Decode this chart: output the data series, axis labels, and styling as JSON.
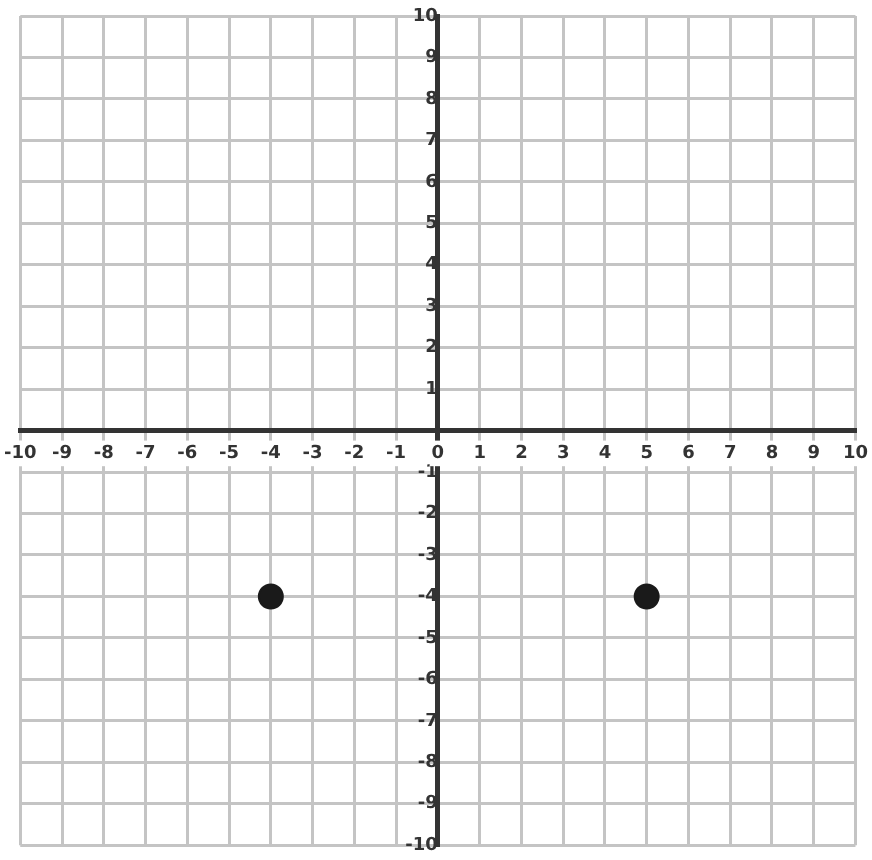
{
  "chart_data": {
    "type": "scatter",
    "series": [
      {
        "color": "#1a1a1a",
        "x": [
          -4,
          5
        ],
        "values": [
          -4,
          -4
        ]
      }
    ],
    "xlim": [
      -10,
      10
    ],
    "ylim": [
      -10,
      10
    ],
    "xticks": [
      -10,
      -9,
      -8,
      -7,
      -6,
      -5,
      -4,
      -3,
      -2,
      -1,
      0,
      1,
      2,
      3,
      4,
      5,
      6,
      7,
      8,
      9,
      10
    ],
    "yticks": [
      -10,
      -9,
      -8,
      -7,
      -6,
      -5,
      -4,
      -3,
      -2,
      -1,
      {
        "value": 0,
        "label": null
      },
      1,
      2,
      3,
      4,
      5,
      6,
      7,
      8,
      9,
      10
    ],
    "grid": true,
    "marker": "circle",
    "legend": false
  }
}
